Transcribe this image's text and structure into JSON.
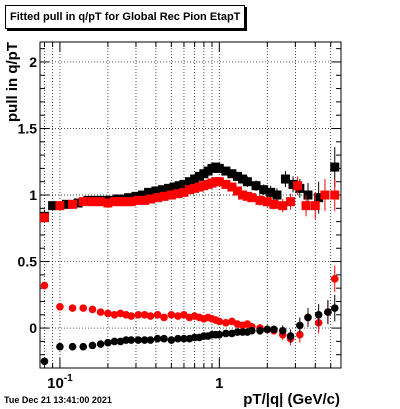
{
  "chart_data": {
    "type": "scatter",
    "title": "Fitted pull in q/pT for Global Rec Pion EtapT",
    "xlabel": "pT/|q| (GeV/c)",
    "ylabel": "pull in q/pT",
    "x_scale": "log",
    "xlim": [
      0.075,
      5.8
    ],
    "ylim": [
      -0.3,
      2.15
    ],
    "x_ticks": [
      {
        "value": 0.1,
        "label": "10^-1"
      },
      {
        "value": 1,
        "label": "1"
      }
    ],
    "y_ticks": [
      0,
      0.5,
      1,
      1.5,
      2
    ],
    "y_tick_labels": [
      "0",
      "0.5",
      "1",
      "1.5",
      "2"
    ],
    "grid": true,
    "series": [
      {
        "color": "#000000",
        "marker": "square",
        "x": [
          0.08,
          0.09,
          0.11,
          0.13,
          0.15,
          0.17,
          0.19,
          0.21,
          0.23,
          0.25,
          0.27,
          0.3,
          0.33,
          0.36,
          0.4,
          0.44,
          0.48,
          0.52,
          0.56,
          0.6,
          0.65,
          0.7,
          0.75,
          0.8,
          0.85,
          0.9,
          0.95,
          1.0,
          1.1,
          1.2,
          1.3,
          1.4,
          1.5,
          1.7,
          1.9,
          2.1,
          2.3,
          2.6,
          2.9,
          3.2,
          3.6,
          4.2,
          5.3
        ],
        "y": [
          0.84,
          0.92,
          0.93,
          0.94,
          0.96,
          0.96,
          0.96,
          0.96,
          0.97,
          0.97,
          0.98,
          0.99,
          1.0,
          1.02,
          1.03,
          1.04,
          1.05,
          1.06,
          1.07,
          1.08,
          1.1,
          1.12,
          1.14,
          1.16,
          1.18,
          1.2,
          1.21,
          1.2,
          1.18,
          1.16,
          1.14,
          1.12,
          1.1,
          1.07,
          1.04,
          1.02,
          1.0,
          1.12,
          1.08,
          1.05,
          1.0,
          0.98,
          1.21
        ],
        "yerr": [
          0.05,
          0.03,
          0.02,
          0.02,
          0.02,
          0.02,
          0.02,
          0.02,
          0.02,
          0.02,
          0.02,
          0.02,
          0.02,
          0.02,
          0.02,
          0.02,
          0.02,
          0.02,
          0.02,
          0.02,
          0.02,
          0.02,
          0.03,
          0.03,
          0.03,
          0.03,
          0.03,
          0.03,
          0.03,
          0.03,
          0.03,
          0.03,
          0.04,
          0.04,
          0.04,
          0.05,
          0.05,
          0.06,
          0.06,
          0.07,
          0.09,
          0.12,
          0.15
        ]
      },
      {
        "color": "#ff0000",
        "marker": "square",
        "x": [
          0.08,
          0.1,
          0.12,
          0.14,
          0.16,
          0.18,
          0.2,
          0.22,
          0.24,
          0.26,
          0.28,
          0.31,
          0.34,
          0.37,
          0.41,
          0.45,
          0.5,
          0.55,
          0.6,
          0.65,
          0.7,
          0.75,
          0.8,
          0.85,
          0.9,
          0.95,
          1.0,
          1.1,
          1.2,
          1.3,
          1.4,
          1.5,
          1.6,
          1.8,
          2.0,
          2.2,
          2.5,
          2.8,
          3.1,
          3.5,
          4.0,
          4.6,
          5.3
        ],
        "y": [
          0.83,
          0.92,
          0.93,
          0.95,
          0.95,
          0.95,
          0.94,
          0.95,
          0.95,
          0.95,
          0.95,
          0.96,
          0.96,
          0.97,
          0.98,
          0.99,
          1.0,
          1.01,
          1.02,
          1.04,
          1.05,
          1.06,
          1.07,
          1.08,
          1.09,
          1.1,
          1.1,
          1.08,
          1.06,
          1.03,
          1.0,
          0.99,
          0.98,
          0.96,
          0.95,
          0.93,
          0.92,
          0.95,
          1.07,
          0.92,
          0.92,
          1.0,
          1.0
        ],
        "yerr": [
          0.04,
          0.03,
          0.02,
          0.02,
          0.02,
          0.02,
          0.02,
          0.02,
          0.02,
          0.02,
          0.02,
          0.02,
          0.02,
          0.02,
          0.02,
          0.02,
          0.02,
          0.02,
          0.02,
          0.02,
          0.02,
          0.02,
          0.02,
          0.02,
          0.02,
          0.02,
          0.02,
          0.03,
          0.03,
          0.03,
          0.03,
          0.03,
          0.03,
          0.04,
          0.04,
          0.04,
          0.05,
          0.06,
          0.07,
          0.08,
          0.1,
          0.12,
          0.12
        ]
      },
      {
        "color": "#ff0000",
        "marker": "circle",
        "x": [
          0.08,
          0.1,
          0.12,
          0.14,
          0.16,
          0.18,
          0.2,
          0.22,
          0.24,
          0.26,
          0.28,
          0.31,
          0.34,
          0.37,
          0.41,
          0.45,
          0.5,
          0.55,
          0.6,
          0.65,
          0.7,
          0.75,
          0.8,
          0.85,
          0.9,
          0.95,
          1.0,
          1.1,
          1.2,
          1.3,
          1.4,
          1.5,
          1.6,
          1.8,
          2.0,
          2.2,
          2.5,
          2.8,
          3.2,
          3.6,
          4.2,
          4.8,
          5.3
        ],
        "y": [
          0.32,
          0.16,
          0.15,
          0.15,
          0.14,
          0.12,
          0.11,
          0.1,
          0.11,
          0.1,
          0.09,
          0.1,
          0.1,
          0.09,
          0.1,
          0.08,
          0.1,
          0.09,
          0.1,
          0.08,
          0.09,
          0.08,
          0.07,
          0.08,
          0.07,
          0.06,
          0.05,
          0.04,
          0.05,
          0.03,
          0.02,
          0.03,
          0.01,
          0.0,
          -0.01,
          -0.02,
          -0.05,
          -0.08,
          -0.05,
          0.08,
          0.04,
          0.12,
          0.37
        ],
        "yerr": [
          0.03,
          0.02,
          0.02,
          0.01,
          0.01,
          0.01,
          0.01,
          0.01,
          0.01,
          0.01,
          0.01,
          0.01,
          0.01,
          0.01,
          0.01,
          0.01,
          0.01,
          0.01,
          0.01,
          0.01,
          0.01,
          0.01,
          0.01,
          0.01,
          0.01,
          0.01,
          0.01,
          0.02,
          0.02,
          0.02,
          0.02,
          0.02,
          0.02,
          0.03,
          0.03,
          0.03,
          0.04,
          0.05,
          0.06,
          0.07,
          0.08,
          0.09,
          0.1
        ]
      },
      {
        "color": "#000000",
        "marker": "circle",
        "x": [
          0.08,
          0.1,
          0.12,
          0.14,
          0.16,
          0.18,
          0.2,
          0.22,
          0.24,
          0.26,
          0.28,
          0.31,
          0.34,
          0.37,
          0.41,
          0.45,
          0.5,
          0.55,
          0.6,
          0.65,
          0.7,
          0.75,
          0.8,
          0.85,
          0.9,
          0.95,
          1.0,
          1.1,
          1.2,
          1.3,
          1.4,
          1.5,
          1.6,
          1.8,
          2.0,
          2.2,
          2.5,
          2.8,
          3.2,
          3.6,
          4.2,
          4.8,
          5.3
        ],
        "y": [
          -0.25,
          -0.14,
          -0.14,
          -0.14,
          -0.13,
          -0.12,
          -0.11,
          -0.1,
          -0.1,
          -0.09,
          -0.09,
          -0.09,
          -0.09,
          -0.09,
          -0.08,
          -0.08,
          -0.09,
          -0.08,
          -0.08,
          -0.08,
          -0.07,
          -0.07,
          -0.06,
          -0.06,
          -0.05,
          -0.05,
          -0.05,
          -0.04,
          -0.04,
          -0.03,
          -0.03,
          -0.03,
          -0.02,
          -0.02,
          -0.01,
          -0.01,
          -0.02,
          -0.06,
          0.02,
          0.08,
          0.1,
          0.12,
          0.15
        ],
        "yerr": [
          0.03,
          0.02,
          0.02,
          0.01,
          0.01,
          0.01,
          0.01,
          0.01,
          0.01,
          0.01,
          0.01,
          0.01,
          0.01,
          0.01,
          0.01,
          0.01,
          0.01,
          0.01,
          0.01,
          0.01,
          0.01,
          0.01,
          0.01,
          0.01,
          0.01,
          0.01,
          0.01,
          0.02,
          0.02,
          0.02,
          0.02,
          0.02,
          0.02,
          0.03,
          0.03,
          0.03,
          0.04,
          0.05,
          0.06,
          0.07,
          0.08,
          0.09,
          0.1
        ]
      }
    ]
  },
  "footer": {
    "timestamp": "Tue Dec 21 13:41:00 2021"
  }
}
